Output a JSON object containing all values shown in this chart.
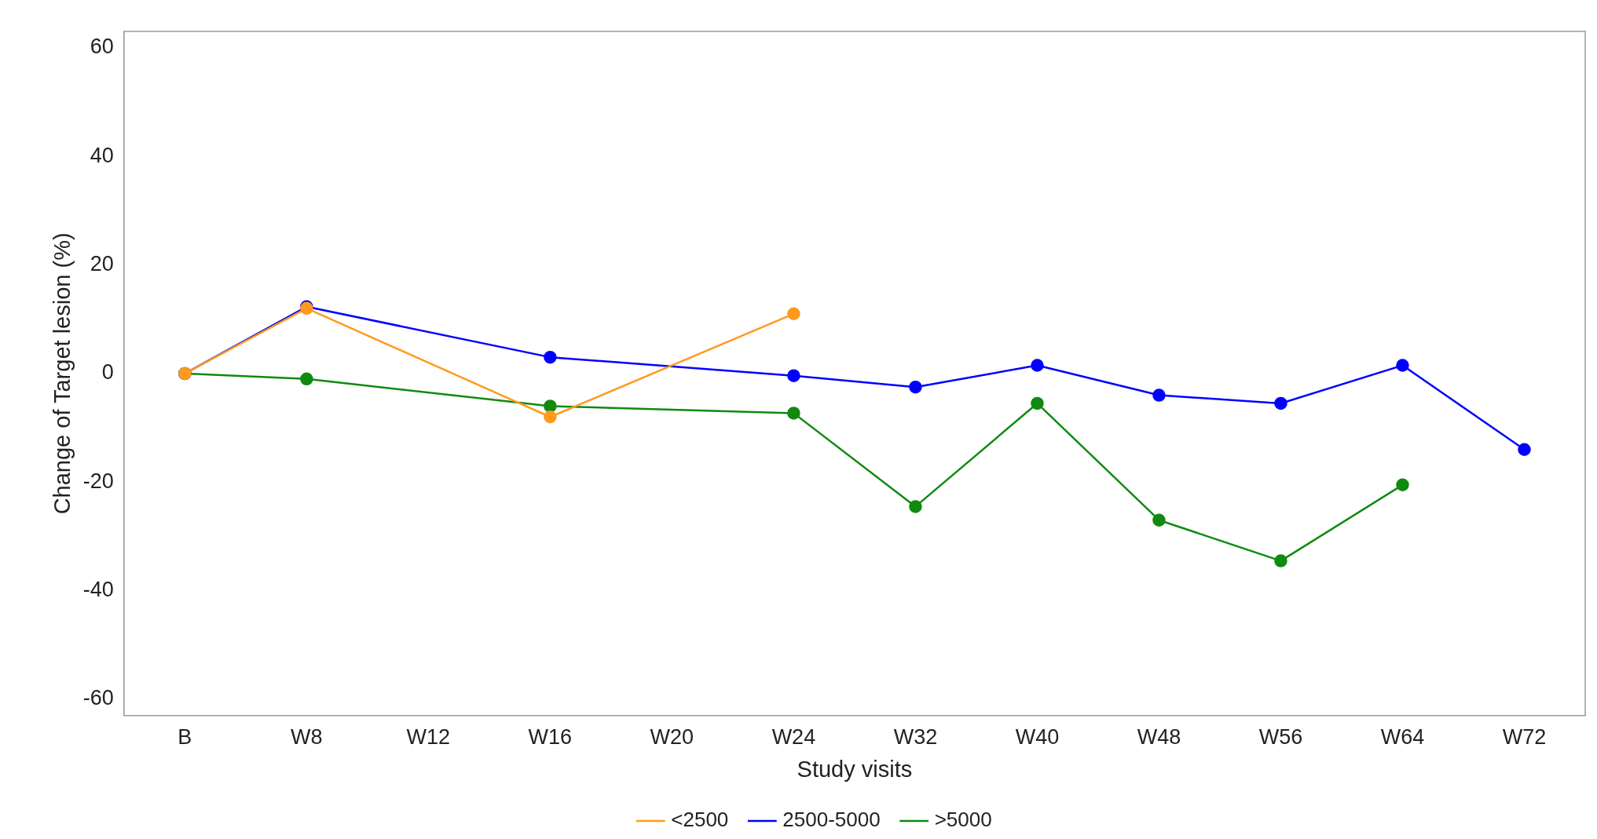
{
  "chart_data": {
    "type": "line",
    "xlabel": "Study visits",
    "ylabel": "Change of Target lesion (%)",
    "categories": [
      "B",
      "W8",
      "W12",
      "W16",
      "W20",
      "W24",
      "W32",
      "W40",
      "W48",
      "W56",
      "W64",
      "W72"
    ],
    "series": [
      {
        "name": "<2500",
        "color": "#ff9a1e",
        "values": [
          0,
          12,
          null,
          -8,
          null,
          11,
          null,
          null,
          null,
          null,
          null,
          null
        ]
      },
      {
        "name": "2500-5000",
        "color": "#0000ff",
        "values": [
          0,
          12.3,
          null,
          3,
          null,
          -0.4,
          -2.5,
          1.5,
          -4,
          -5.5,
          1.5,
          -14
        ]
      },
      {
        "name": ">5000",
        "color": "#108a10",
        "values": [
          0,
          -1,
          null,
          -6,
          null,
          -7.3,
          -24.5,
          -5.5,
          -27,
          -34.5,
          -20.5,
          null
        ]
      }
    ],
    "ylim": [
      -63,
      63
    ],
    "yticks": [
      -60,
      -40,
      -20,
      0,
      20,
      40,
      60
    ],
    "grid": false,
    "legend": "bottom",
    "marker": "circle",
    "line_style": "solid"
  }
}
